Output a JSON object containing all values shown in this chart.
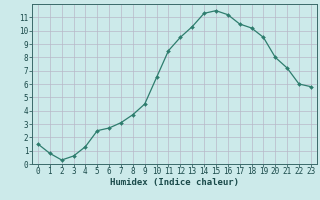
{
  "x": [
    0,
    1,
    2,
    3,
    4,
    5,
    6,
    7,
    8,
    9,
    10,
    11,
    12,
    13,
    14,
    15,
    16,
    17,
    18,
    19,
    20,
    21,
    22,
    23
  ],
  "y": [
    1.5,
    0.8,
    0.3,
    0.6,
    1.3,
    2.5,
    2.7,
    3.1,
    3.7,
    4.5,
    6.5,
    8.5,
    9.5,
    10.3,
    11.3,
    11.5,
    11.2,
    10.5,
    10.2,
    9.5,
    8.0,
    7.2,
    6.0,
    5.8
  ],
  "line_color": "#2e7d6e",
  "marker": "D",
  "marker_size": 2.0,
  "bg_color": "#cceaea",
  "grid_color": "#b8b8c8",
  "xlabel": "Humidex (Indice chaleur)",
  "xlim": [
    -0.5,
    23.5
  ],
  "ylim": [
    0,
    12
  ],
  "xticks": [
    0,
    1,
    2,
    3,
    4,
    5,
    6,
    7,
    8,
    9,
    10,
    11,
    12,
    13,
    14,
    15,
    16,
    17,
    18,
    19,
    20,
    21,
    22,
    23
  ],
  "yticks": [
    0,
    1,
    2,
    3,
    4,
    5,
    6,
    7,
    8,
    9,
    10,
    11
  ],
  "xlabel_fontsize": 6.5,
  "tick_fontsize": 5.5,
  "label_color": "#1a4a4a",
  "spine_color": "#3a6a6a",
  "linewidth": 0.9
}
